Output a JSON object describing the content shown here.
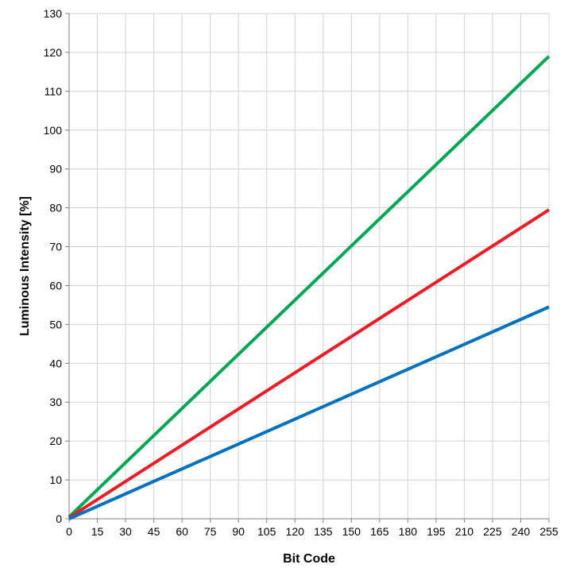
{
  "chart_data": {
    "type": "line",
    "title": "",
    "xlabel": "Bit Code",
    "ylabel": "Luminous Intensity [%]",
    "xlim": [
      0,
      255
    ],
    "ylim": [
      0,
      130
    ],
    "x_ticks": [
      0,
      15,
      30,
      45,
      60,
      75,
      90,
      105,
      120,
      135,
      150,
      165,
      180,
      195,
      210,
      225,
      240,
      255
    ],
    "y_ticks": [
      0,
      10,
      20,
      30,
      40,
      50,
      60,
      70,
      80,
      90,
      100,
      110,
      120,
      130
    ],
    "grid": true,
    "legend": "none",
    "series": [
      {
        "color": "#00a651",
        "x": [
          0,
          255
        ],
        "y": [
          0.5,
          119
        ]
      },
      {
        "color": "#ed1c24",
        "x": [
          0,
          255
        ],
        "y": [
          0.3,
          79.5
        ]
      },
      {
        "color": "#0070c0",
        "x": [
          0,
          255
        ],
        "y": [
          0,
          54.5
        ]
      }
    ]
  }
}
